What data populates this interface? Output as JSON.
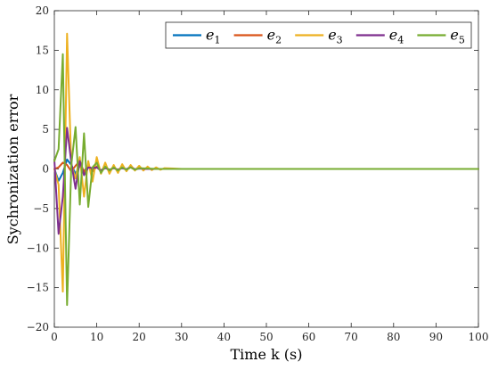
{
  "chart_data": {
    "type": "line",
    "title": "",
    "xlabel": "Time k (s)",
    "ylabel": "Sychronization error",
    "xlim": [
      0,
      100
    ],
    "ylim": [
      -20,
      20
    ],
    "xticks": [
      0,
      10,
      20,
      30,
      40,
      50,
      60,
      70,
      80,
      90,
      100
    ],
    "yticks": [
      -20,
      -15,
      -10,
      -5,
      0,
      5,
      10,
      15,
      20
    ],
    "grid": false,
    "legend_position": "top-right",
    "legend_orientation": "horizontal",
    "series": [
      {
        "name": "e1",
        "color": "#0072BD",
        "x": [
          0,
          1,
          2,
          3,
          4,
          5,
          6,
          7,
          8,
          9,
          10,
          11,
          12,
          13,
          14,
          15,
          16,
          17,
          18,
          19,
          20,
          22,
          24,
          26,
          28,
          30,
          35,
          40,
          100
        ],
        "y": [
          0,
          -1.5,
          -0.5,
          1.2,
          0.5,
          -0.6,
          0.4,
          -0.3,
          0.5,
          -0.3,
          0.3,
          -0.2,
          0.2,
          -0.15,
          0.15,
          -0.1,
          0.1,
          -0.05,
          0.3,
          -0.05,
          0.05,
          0.02,
          0,
          0,
          0,
          0,
          0,
          0,
          0
        ]
      },
      {
        "name": "e2",
        "color": "#D95319",
        "x": [
          0,
          1,
          2,
          3,
          4,
          5,
          6,
          7,
          8,
          9,
          10,
          11,
          12,
          13,
          14,
          15,
          16,
          17,
          18,
          19,
          20,
          22,
          24,
          26,
          28,
          30,
          35,
          40,
          100
        ],
        "y": [
          0,
          0.2,
          0.8,
          0.5,
          -0.3,
          0.4,
          1.0,
          -0.4,
          0.5,
          -0.3,
          0.3,
          -0.3,
          0.2,
          -0.1,
          0.1,
          -0.1,
          0.2,
          -0.1,
          0.2,
          -0.1,
          0.1,
          0,
          0,
          0,
          0,
          0,
          0,
          0,
          0
        ]
      },
      {
        "name": "e3",
        "color": "#EDB120",
        "x": [
          0,
          1,
          2,
          3,
          4,
          5,
          6,
          7,
          8,
          9,
          10,
          11,
          12,
          13,
          14,
          15,
          16,
          17,
          18,
          19,
          20,
          21,
          22,
          23,
          24,
          25,
          26,
          28,
          30,
          32,
          35,
          40,
          100
        ],
        "y": [
          0,
          -2,
          -15.5,
          17.1,
          0.5,
          -1.2,
          1.5,
          -3.5,
          1.0,
          -1.6,
          1.5,
          -0.6,
          0.8,
          -0.6,
          0.5,
          -0.5,
          0.6,
          -0.3,
          0.5,
          -0.2,
          0.4,
          -0.2,
          0.3,
          -0.15,
          0.2,
          -0.1,
          0.1,
          0.05,
          0,
          0,
          0,
          0,
          0
        ]
      },
      {
        "name": "e4",
        "color": "#7E2F8E",
        "x": [
          0,
          1,
          2,
          3,
          4,
          5,
          6,
          7,
          8,
          9,
          10,
          11,
          12,
          13,
          14,
          15,
          16,
          17,
          18,
          19,
          20,
          22,
          24,
          26,
          28,
          30,
          35,
          40,
          100
        ],
        "y": [
          1.2,
          -8.2,
          -3.5,
          5.2,
          0.8,
          -2.5,
          1.0,
          -0.8,
          0.2,
          0.1,
          0.2,
          -0.2,
          0.1,
          -0.1,
          0.1,
          -0.1,
          0.1,
          -0.05,
          0.2,
          -0.05,
          0.05,
          0,
          0,
          0,
          0,
          0,
          0,
          0,
          0
        ]
      },
      {
        "name": "e5",
        "color": "#77AC30",
        "x": [
          0,
          1,
          2,
          3,
          4,
          5,
          6,
          7,
          8,
          9,
          10,
          11,
          12,
          13,
          14,
          15,
          16,
          17,
          18,
          19,
          20,
          22,
          24,
          26,
          28,
          30,
          35,
          40,
          100
        ],
        "y": [
          1.0,
          2.5,
          14.5,
          -17.2,
          0.5,
          5.3,
          -4.5,
          4.5,
          -4.8,
          0.2,
          0.8,
          -0.5,
          0.3,
          -0.2,
          0.2,
          -0.2,
          0.2,
          -0.1,
          0.2,
          -0.1,
          0.1,
          0.05,
          0,
          0,
          0,
          0,
          0,
          0,
          0
        ]
      }
    ]
  }
}
